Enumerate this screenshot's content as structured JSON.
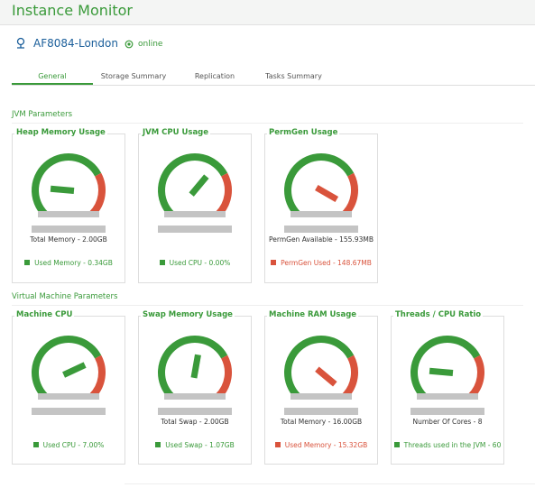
{
  "header": {
    "title": "Instance Monitor"
  },
  "instance": {
    "name": "AF8084-London",
    "status": "online"
  },
  "tabs": [
    "General",
    "Storage Summary",
    "Replication",
    "Tasks Summary"
  ],
  "sections": [
    {
      "title": "JVM Parameters",
      "cards": [
        {
          "title": "Heap Memory Usage",
          "caption": "Total Memory - 2.00GB",
          "legend": "Used Memory - 0.34GB",
          "color": "#3a9a3a"
        },
        {
          "title": "JVM CPU Usage",
          "legend": "Used CPU - 0.00%",
          "color": "#3a9a3a"
        },
        {
          "title": "PermGen Usage",
          "caption": "PermGen Available - 155.93MB",
          "legend": "PermGen Used - 148.67MB",
          "color": "#d9533c"
        }
      ]
    },
    {
      "title": "Virtual Machine Parameters",
      "cards": [
        {
          "title": "Machine CPU",
          "legend": "Used CPU - 7.00%",
          "color": "#3a9a3a"
        },
        {
          "title": "Swap Memory Usage",
          "caption": "Total Swap - 2.00GB",
          "legend": "Used Swap - 1.07GB",
          "color": "#3a9a3a"
        },
        {
          "title": "Machine RAM Usage",
          "caption": "Total Memory - 16.00GB",
          "legend": "Used Memory - 15.32GB",
          "color": "#d9533c"
        },
        {
          "title": "Threads / CPU Ratio",
          "caption": "Number Of Cores - 8",
          "legend": "Threads used in the JVM - 60",
          "color": "#3a9a3a"
        }
      ]
    }
  ]
}
